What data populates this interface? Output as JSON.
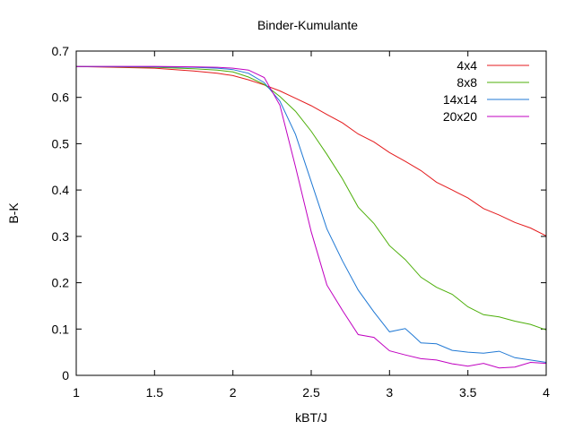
{
  "chart_data": {
    "type": "line",
    "title": "Binder-Kumulante",
    "xlabel": "kBT/J",
    "ylabel": "B-K",
    "xlim": [
      1,
      4
    ],
    "ylim": [
      0,
      0.7
    ],
    "x_ticks": [
      1,
      1.5,
      2,
      2.5,
      3,
      3.5,
      4
    ],
    "x_tick_labels": [
      "1",
      "1.5",
      "2",
      "2.5",
      "3",
      "3.5",
      "4"
    ],
    "y_ticks": [
      0,
      0.1,
      0.2,
      0.3,
      0.4,
      0.5,
      0.6,
      0.7
    ],
    "y_tick_labels": [
      "0",
      "0.1",
      "0.2",
      "0.3",
      "0.4",
      "0.5",
      "0.6",
      "0.7"
    ],
    "grid": false,
    "legend_position": "top-right",
    "series": [
      {
        "name": "4x4",
        "color": "#e41a1c",
        "x": [
          1.0,
          1.5,
          1.75,
          1.9,
          2.0,
          2.1,
          2.2,
          2.3,
          2.4,
          2.5,
          2.6,
          2.7,
          2.8,
          2.9,
          3.0,
          3.1,
          3.2,
          3.3,
          3.4,
          3.5,
          3.6,
          3.7,
          3.8,
          3.9,
          4.0
        ],
        "values": [
          0.6667,
          0.663,
          0.657,
          0.652,
          0.647,
          0.638,
          0.627,
          0.614,
          0.598,
          0.582,
          0.563,
          0.545,
          0.521,
          0.504,
          0.481,
          0.462,
          0.442,
          0.417,
          0.4,
          0.383,
          0.36,
          0.346,
          0.33,
          0.318,
          0.301
        ]
      },
      {
        "name": "8x8",
        "color": "#4daf0a",
        "x": [
          1.0,
          1.5,
          1.75,
          1.9,
          2.0,
          2.1,
          2.2,
          2.3,
          2.4,
          2.5,
          2.6,
          2.7,
          2.8,
          2.9,
          3.0,
          3.1,
          3.2,
          3.3,
          3.4,
          3.5,
          3.6,
          3.7,
          3.8,
          3.9,
          4.0
        ],
        "values": [
          0.6667,
          0.665,
          0.662,
          0.659,
          0.655,
          0.644,
          0.628,
          0.602,
          0.57,
          0.527,
          0.477,
          0.424,
          0.363,
          0.328,
          0.28,
          0.25,
          0.212,
          0.19,
          0.175,
          0.148,
          0.131,
          0.126,
          0.117,
          0.11,
          0.098
        ]
      },
      {
        "name": "14x14",
        "color": "#1f78d4",
        "x": [
          1.0,
          1.5,
          1.75,
          1.9,
          2.0,
          2.1,
          2.2,
          2.3,
          2.4,
          2.5,
          2.6,
          2.7,
          2.8,
          2.9,
          3.0,
          3.1,
          3.15,
          3.2,
          3.3,
          3.4,
          3.5,
          3.6,
          3.7,
          3.8,
          3.9,
          4.0
        ],
        "values": [
          0.6667,
          0.666,
          0.665,
          0.663,
          0.66,
          0.652,
          0.632,
          0.592,
          0.52,
          0.418,
          0.316,
          0.247,
          0.184,
          0.137,
          0.094,
          0.101,
          0.086,
          0.07,
          0.068,
          0.054,
          0.05,
          0.048,
          0.052,
          0.038,
          0.033,
          0.028
        ]
      },
      {
        "name": "20x20",
        "color": "#c000c0",
        "x": [
          1.0,
          1.5,
          1.75,
          1.9,
          2.0,
          2.1,
          2.2,
          2.3,
          2.4,
          2.5,
          2.6,
          2.7,
          2.8,
          2.9,
          3.0,
          3.1,
          3.2,
          3.3,
          3.4,
          3.5,
          3.6,
          3.7,
          3.8,
          3.9,
          4.0
        ],
        "values": [
          0.6667,
          0.667,
          0.666,
          0.665,
          0.663,
          0.659,
          0.643,
          0.583,
          0.45,
          0.31,
          0.195,
          0.14,
          0.088,
          0.082,
          0.053,
          0.044,
          0.036,
          0.033,
          0.025,
          0.02,
          0.026,
          0.016,
          0.018,
          0.028,
          0.026
        ]
      }
    ]
  }
}
